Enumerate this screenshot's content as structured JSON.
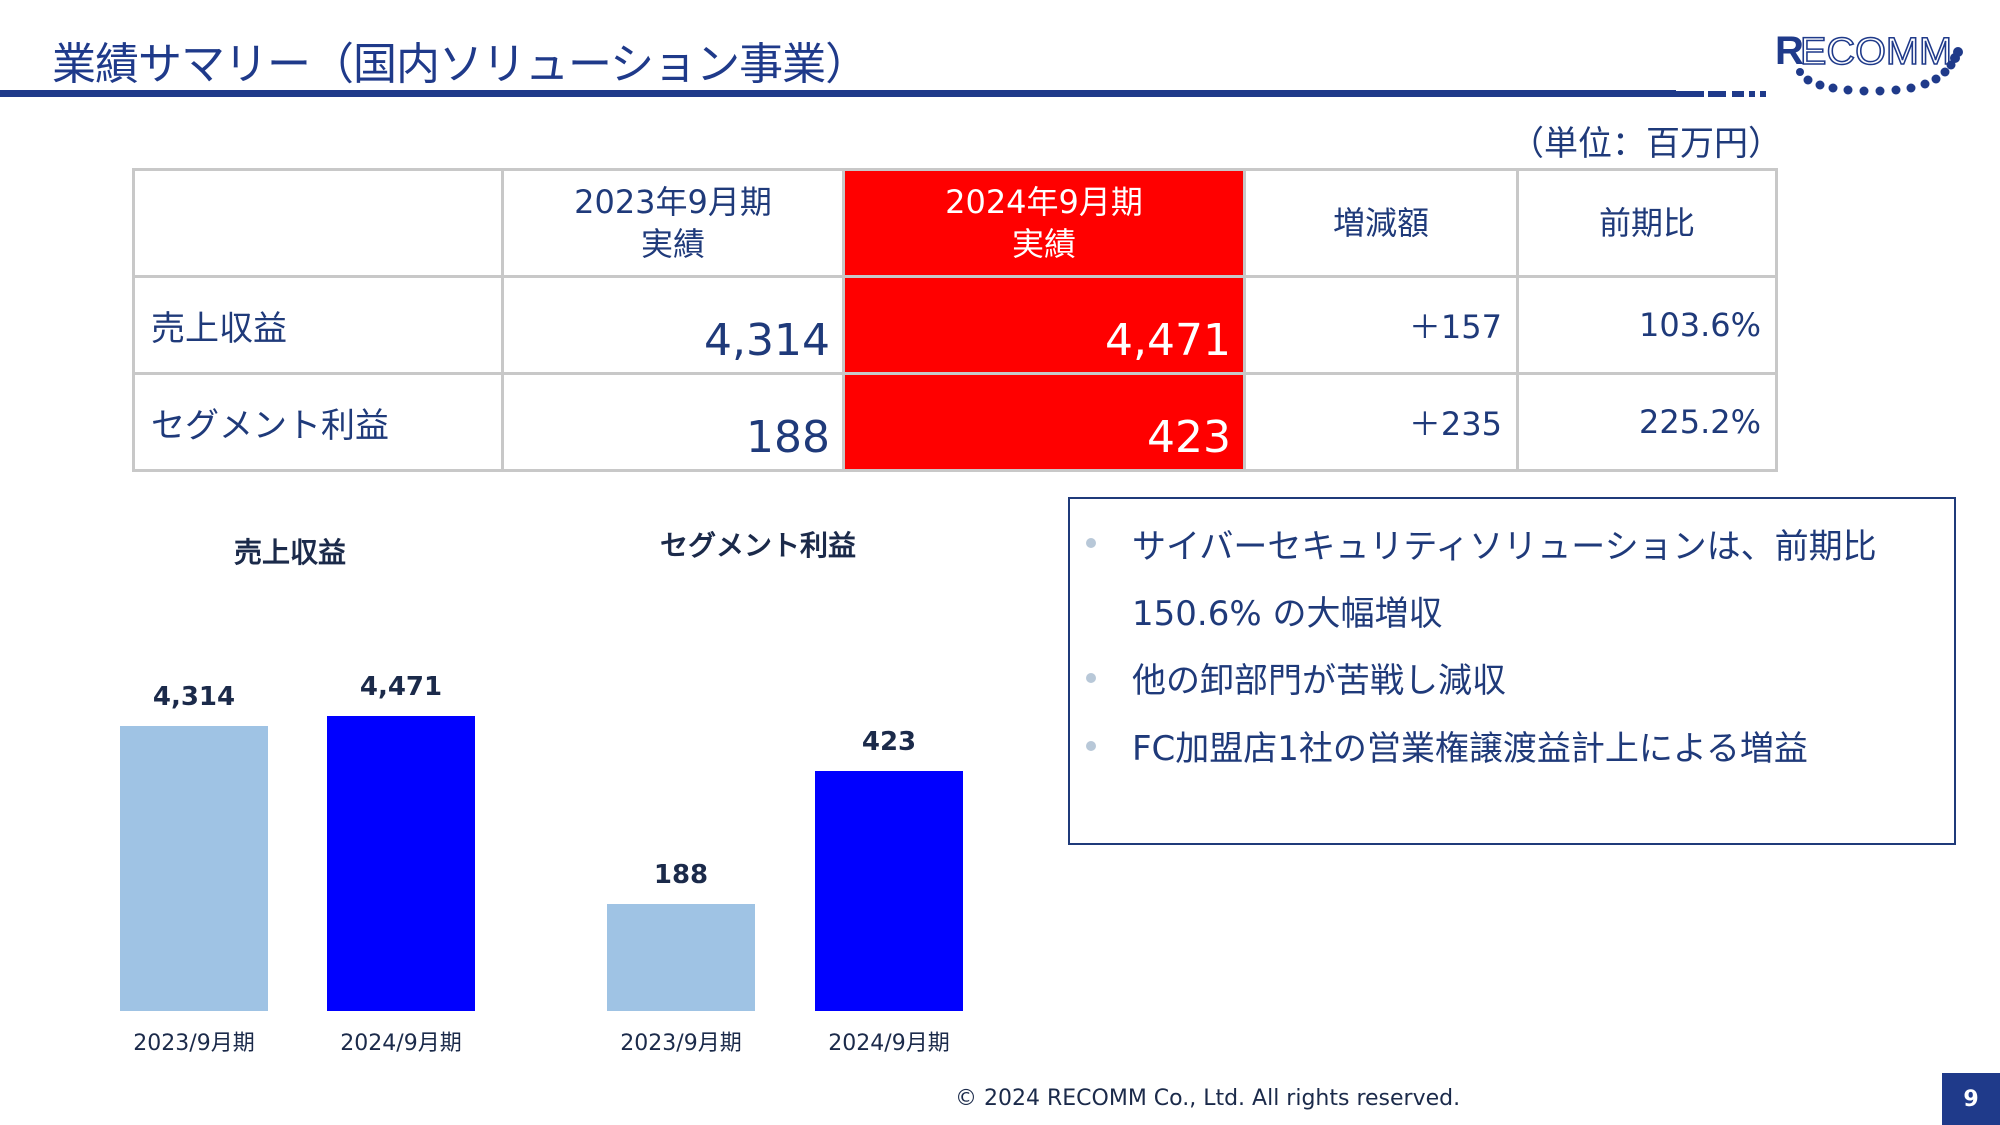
{
  "header": {
    "title": "業績サマリー（国内ソリューション事業）",
    "logo_text": "RECOMM",
    "unit_note": "（単位：百万円）"
  },
  "colors": {
    "brand_navy": "#1f3a8a",
    "highlight_red": "#ff0000",
    "bar_prev": "#9fc3e4",
    "bar_curr": "#0000ff"
  },
  "table": {
    "headers": [
      "",
      "2023年9月期\n実績",
      "2024年9月期\n実績",
      "増減額",
      "前期比"
    ],
    "header_lines": [
      [],
      [
        "2023年9月期",
        "実績"
      ],
      [
        "2024年9月期",
        "実績"
      ],
      [
        "増減額"
      ],
      [
        "前期比"
      ]
    ],
    "rows": [
      {
        "label": "売上収益",
        "fy2023": "4,314",
        "fy2024": "4,471",
        "change": "＋157",
        "ratio": "103.6%"
      },
      {
        "label": "セグメント利益",
        "fy2023": "188",
        "fy2024": "423",
        "change": "＋235",
        "ratio": "225.2%"
      }
    ]
  },
  "chart_data": [
    {
      "type": "bar",
      "title": "売上収益",
      "categories": [
        "2023/9月期",
        "2024/9月期"
      ],
      "values": [
        4314,
        4471
      ],
      "labels": [
        "4,314",
        "4,471"
      ],
      "xlabel": "",
      "ylabel": "",
      "ylim": [
        0,
        4800
      ],
      "grid": false,
      "legend": "none"
    },
    {
      "type": "bar",
      "title": "セグメント利益",
      "categories": [
        "2023/9月期",
        "2024/9月期"
      ],
      "values": [
        188,
        423
      ],
      "labels": [
        "188",
        "423"
      ],
      "xlabel": "",
      "ylabel": "",
      "ylim": [
        0,
        480
      ],
      "grid": false,
      "legend": "none"
    }
  ],
  "notes": {
    "items": [
      {
        "bullet": true,
        "text": "サイバーセキュリティソリューションは、前期比"
      },
      {
        "bullet": false,
        "text": "150.6% の大幅増収"
      },
      {
        "bullet": true,
        "text": "他の卸部門が苦戦し減収"
      },
      {
        "bullet": true,
        "text": "FC加盟店1社の営業権譲渡益計上による増益"
      }
    ]
  },
  "footer": {
    "copyright": "© 2024 RECOMM Co., Ltd. All rights reserved.",
    "page_number": "9"
  }
}
